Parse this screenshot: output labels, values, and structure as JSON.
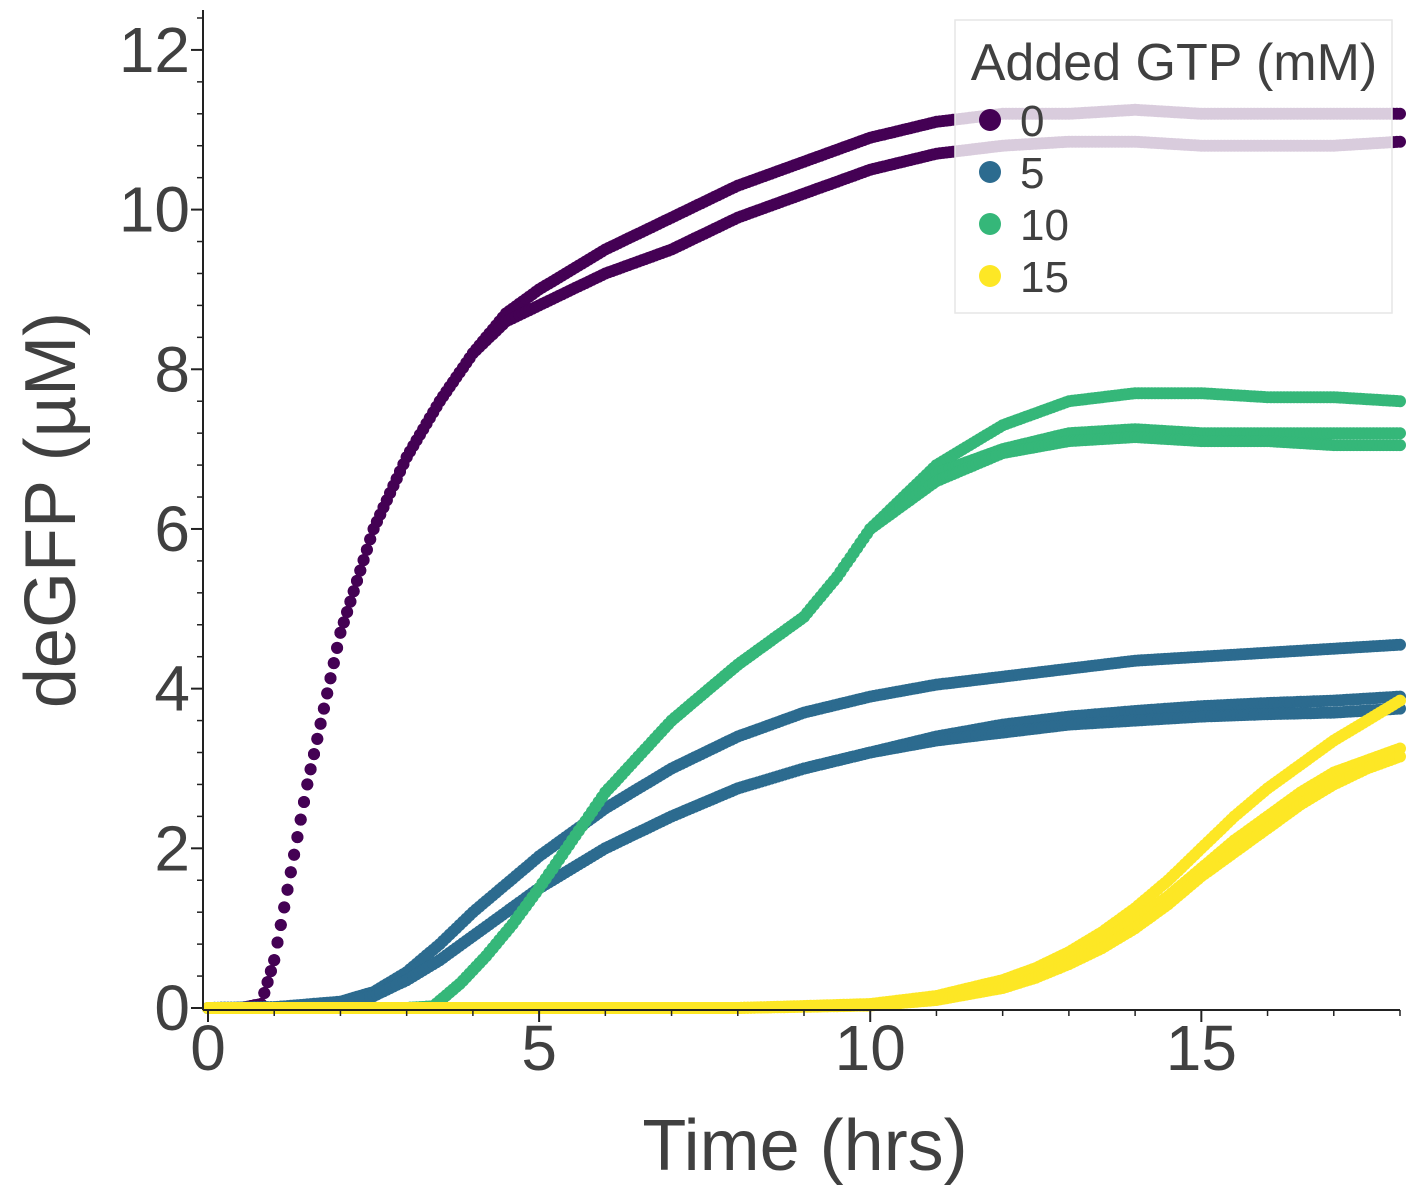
{
  "chart_data": {
    "type": "scatter",
    "xlabel": "Time (hrs)",
    "ylabel": "deGFP (µM)",
    "xlim": [
      0,
      18
    ],
    "ylim": [
      0,
      12.5
    ],
    "x_ticks": [
      "0",
      "5",
      "10",
      "15"
    ],
    "x_tick_values": [
      0,
      5,
      10,
      15
    ],
    "y_ticks": [
      "0",
      "2",
      "4",
      "6",
      "8",
      "10",
      "12"
    ],
    "y_tick_values": [
      0,
      2,
      4,
      6,
      8,
      10,
      12
    ],
    "legend": {
      "title": "Added GTP (mM)",
      "placement": "top-right"
    },
    "series": [
      {
        "name": "0",
        "color": "#440154",
        "replicates": [
          {
            "x": [
              0,
              0.5,
              0.8,
              1,
              1.5,
              2,
              2.5,
              3,
              3.5,
              4,
              4.5,
              5,
              6,
              7,
              8,
              9,
              10,
              11,
              12,
              13,
              14,
              15,
              16,
              17,
              18
            ],
            "y": [
              0,
              0,
              0.05,
              0.6,
              2.8,
              4.7,
              6.0,
              6.9,
              7.6,
              8.2,
              8.7,
              9.0,
              9.5,
              9.9,
              10.3,
              10.6,
              10.9,
              11.1,
              11.2,
              11.2,
              11.25,
              11.2,
              11.2,
              11.2,
              11.2
            ]
          },
          {
            "x": [
              0,
              0.5,
              0.8,
              1,
              1.5,
              2,
              2.5,
              3,
              3.5,
              4,
              4.5,
              5,
              6,
              7,
              8,
              9,
              10,
              11,
              12,
              13,
              14,
              15,
              16,
              17,
              18
            ],
            "y": [
              0,
              0,
              0.05,
              0.6,
              2.8,
              4.7,
              6.0,
              6.9,
              7.6,
              8.2,
              8.6,
              8.8,
              9.2,
              9.5,
              9.9,
              10.2,
              10.5,
              10.7,
              10.8,
              10.85,
              10.85,
              10.8,
              10.8,
              10.8,
              10.85
            ]
          }
        ]
      },
      {
        "name": "5",
        "color": "#2c6b8f",
        "replicates": [
          {
            "x": [
              0,
              1,
              2,
              2.5,
              3,
              3.5,
              4,
              5,
              6,
              7,
              8,
              9,
              10,
              11,
              12,
              13,
              14,
              15,
              16,
              17,
              18
            ],
            "y": [
              0,
              0.01,
              0.08,
              0.2,
              0.45,
              0.8,
              1.2,
              1.9,
              2.5,
              3.0,
              3.4,
              3.7,
              3.9,
              4.05,
              4.15,
              4.25,
              4.35,
              4.4,
              4.45,
              4.5,
              4.55
            ]
          },
          {
            "x": [
              0,
              1,
              2,
              2.5,
              3,
              3.5,
              4,
              5,
              6,
              7,
              8,
              9,
              10,
              11,
              12,
              13,
              14,
              15,
              16,
              17,
              18
            ],
            "y": [
              0,
              0.01,
              0.06,
              0.15,
              0.35,
              0.6,
              0.9,
              1.5,
              2.0,
              2.4,
              2.75,
              3.0,
              3.2,
              3.4,
              3.55,
              3.65,
              3.72,
              3.78,
              3.82,
              3.85,
              3.9
            ]
          },
          {
            "x": [
              0,
              1,
              2,
              2.5,
              3,
              3.5,
              4,
              5,
              6,
              7,
              8,
              9,
              10,
              11,
              12,
              13,
              14,
              15,
              16,
              17,
              18
            ],
            "y": [
              0,
              0.01,
              0.06,
              0.15,
              0.35,
              0.6,
              0.9,
              1.5,
              2.0,
              2.4,
              2.75,
              3.0,
              3.2,
              3.35,
              3.45,
              3.55,
              3.6,
              3.65,
              3.68,
              3.7,
              3.75
            ]
          }
        ]
      },
      {
        "name": "10",
        "color": "#35b779",
        "replicates": [
          {
            "x": [
              0,
              3,
              3.4,
              3.8,
              4.2,
              4.6,
              5,
              5.5,
              6,
              7,
              8,
              9,
              9.5,
              10,
              11,
              12,
              13,
              14,
              15,
              16,
              17,
              18
            ],
            "y": [
              0,
              0,
              0.02,
              0.3,
              0.65,
              1.05,
              1.5,
              2.1,
              2.7,
              3.6,
              4.3,
              4.9,
              5.4,
              6.0,
              6.8,
              7.3,
              7.6,
              7.7,
              7.7,
              7.65,
              7.65,
              7.6
            ]
          },
          {
            "x": [
              0,
              3,
              3.4,
              3.8,
              4.2,
              4.6,
              5,
              5.5,
              6,
              7,
              8,
              9,
              9.5,
              10,
              11,
              12,
              13,
              14,
              15,
              16,
              17,
              18
            ],
            "y": [
              0,
              0,
              0.02,
              0.3,
              0.65,
              1.05,
              1.5,
              2.1,
              2.7,
              3.6,
              4.3,
              4.9,
              5.4,
              6.0,
              6.7,
              7.0,
              7.2,
              7.25,
              7.2,
              7.2,
              7.2,
              7.2
            ]
          },
          {
            "x": [
              0,
              3,
              3.4,
              3.8,
              4.2,
              4.6,
              5,
              5.5,
              6,
              7,
              8,
              9,
              9.5,
              10,
              11,
              12,
              13,
              14,
              15,
              16,
              17,
              18
            ],
            "y": [
              0,
              0,
              0.02,
              0.3,
              0.65,
              1.05,
              1.5,
              2.1,
              2.7,
              3.6,
              4.3,
              4.9,
              5.4,
              6.0,
              6.6,
              6.95,
              7.1,
              7.15,
              7.1,
              7.1,
              7.05,
              7.05
            ]
          }
        ]
      },
      {
        "name": "15",
        "color": "#fde725",
        "replicates": [
          {
            "x": [
              0,
              8,
              10,
              11,
              12,
              12.5,
              13,
              13.5,
              14,
              14.5,
              15,
              15.5,
              16,
              16.5,
              17,
              17.5,
              18
            ],
            "y": [
              0,
              0,
              0.05,
              0.15,
              0.35,
              0.5,
              0.7,
              0.95,
              1.25,
              1.6,
              2.0,
              2.4,
              2.75,
              3.05,
              3.35,
              3.6,
              3.85
            ]
          },
          {
            "x": [
              0,
              8,
              10,
              11,
              12,
              12.5,
              13,
              13.5,
              14,
              14.5,
              15,
              15.5,
              16,
              16.5,
              17,
              17.5,
              18
            ],
            "y": [
              0,
              0,
              0.04,
              0.12,
              0.3,
              0.42,
              0.6,
              0.82,
              1.1,
              1.4,
              1.75,
              2.1,
              2.4,
              2.7,
              2.95,
              3.1,
              3.25
            ]
          },
          {
            "x": [
              0,
              8,
              10,
              11,
              12,
              12.5,
              13,
              13.5,
              14,
              14.5,
              15,
              15.5,
              16,
              16.5,
              17,
              17.5,
              18
            ],
            "y": [
              0,
              0,
              0.03,
              0.1,
              0.25,
              0.38,
              0.55,
              0.75,
              1.0,
              1.3,
              1.65,
              1.95,
              2.25,
              2.55,
              2.8,
              3.0,
              3.15
            ]
          }
        ]
      }
    ]
  }
}
